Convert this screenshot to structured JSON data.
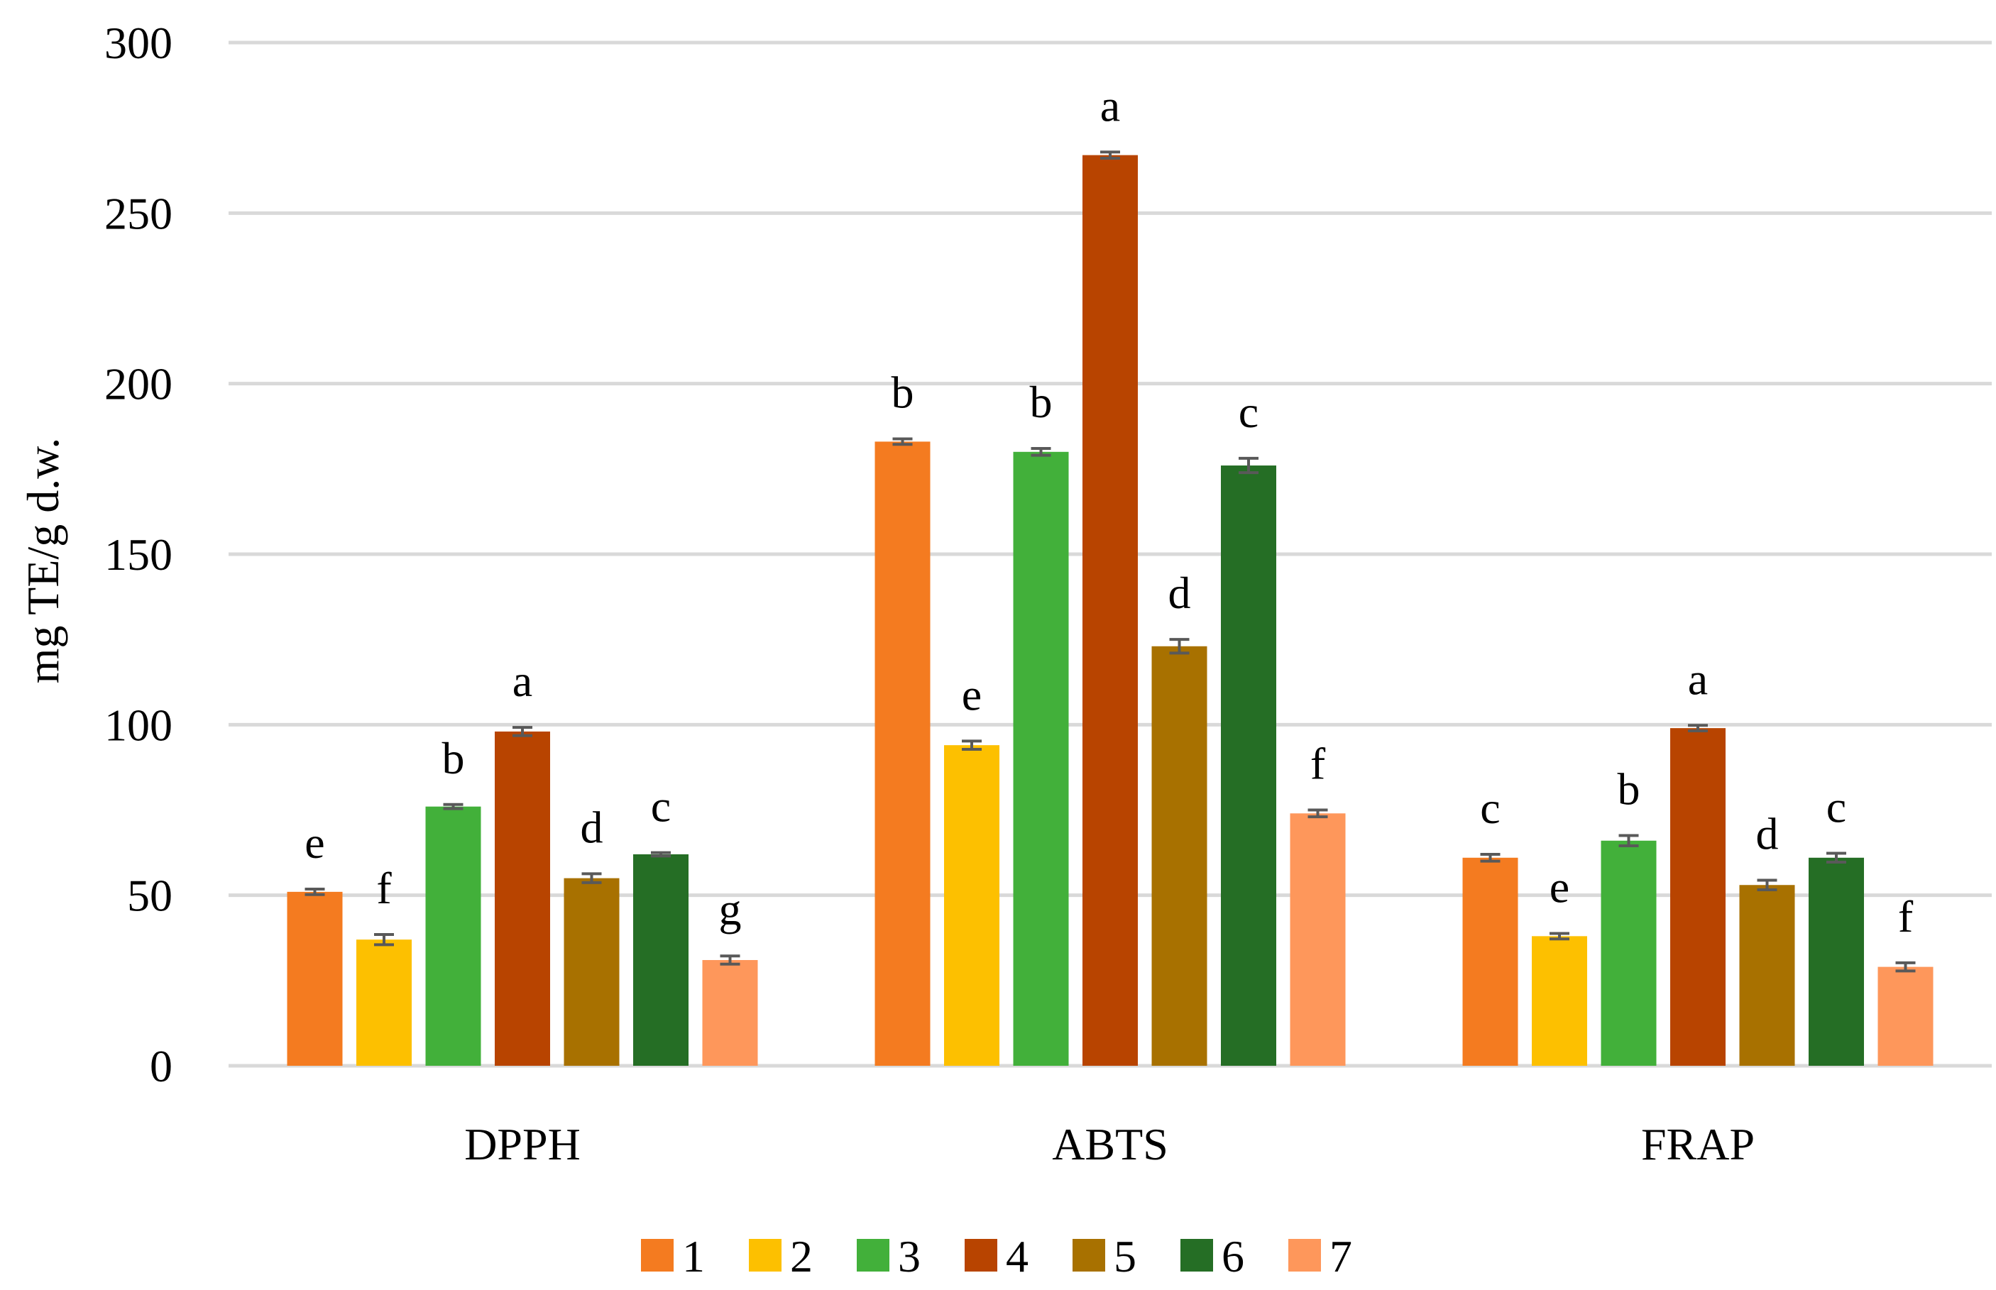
{
  "chart_data": {
    "type": "bar",
    "title": "",
    "xlabel": "",
    "ylabel": "mg TE/g d.w.",
    "ylim": [
      0,
      300
    ],
    "yticks": [
      0,
      50,
      100,
      150,
      200,
      250,
      300
    ],
    "categories": [
      "DPPH",
      "ABTS",
      "FRAP"
    ],
    "grid": true,
    "legend_position": "bottom",
    "series": [
      {
        "name": "1",
        "color": "#f47b20",
        "values": [
          51,
          183,
          61
        ],
        "errors": [
          0.8,
          0.8,
          1.0
        ],
        "labels": [
          "e",
          "b",
          "c"
        ]
      },
      {
        "name": "2",
        "color": "#fdc000",
        "values": [
          37,
          94,
          38
        ],
        "errors": [
          1.5,
          1.2,
          0.8
        ],
        "labels": [
          "f",
          "e",
          "e"
        ]
      },
      {
        "name": "3",
        "color": "#42b03a",
        "values": [
          76,
          180,
          66
        ],
        "errors": [
          0.6,
          1.0,
          1.5
        ],
        "labels": [
          "b",
          "b",
          "b"
        ]
      },
      {
        "name": "4",
        "color": "#b84400",
        "values": [
          98,
          267,
          99
        ],
        "errors": [
          1.2,
          0.9,
          0.8
        ],
        "labels": [
          "a",
          "a",
          "a"
        ]
      },
      {
        "name": "5",
        "color": "#a87100",
        "values": [
          55,
          123,
          53
        ],
        "errors": [
          1.3,
          2.0,
          1.4
        ],
        "labels": [
          "d",
          "d",
          "d"
        ]
      },
      {
        "name": "6",
        "color": "#256e25",
        "values": [
          62,
          176,
          61
        ],
        "errors": [
          0.5,
          2.1,
          1.3
        ],
        "labels": [
          "c",
          "c",
          "c"
        ]
      },
      {
        "name": "7",
        "color": "#fe975b",
        "values": [
          31,
          74,
          29
        ],
        "errors": [
          1.2,
          1.0,
          1.2
        ],
        "labels": [
          "g",
          "f",
          "f"
        ]
      }
    ]
  }
}
